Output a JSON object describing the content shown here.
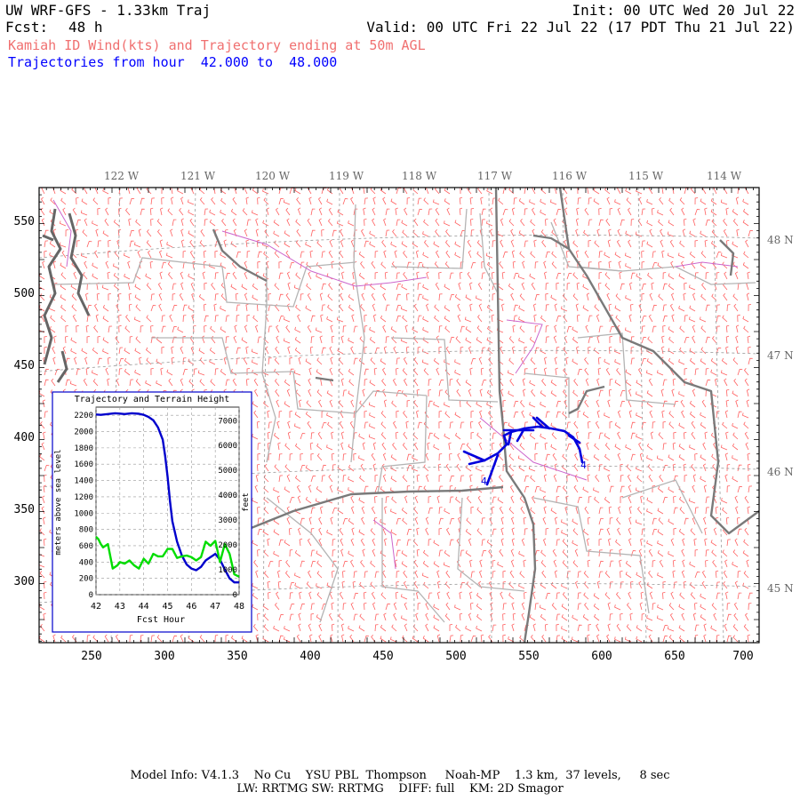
{
  "header": {
    "title": "UW WRF-GFS - 1.33km Traj",
    "init": "Init: 00 UTC Wed 20 Jul 22",
    "fcst_label": "Fcst:",
    "fcst_value": "48 h",
    "valid": "Valid: 00 UTC Fri 22 Jul 22 (17 PDT Thu 21 Jul 22)",
    "subtitle": "Kamiah ID Wind(kts) and Trajectory ending at 50m AGL",
    "traj_line": "Trajectories from hour  42.000 to  48.000"
  },
  "map": {
    "lon_labels": [
      "122 W",
      "121 W",
      "120 W",
      "119 W",
      "118 W",
      "117 W",
      "116 W",
      "115 W",
      "114 W"
    ],
    "lat_labels": [
      "48 N",
      "47 N",
      "46 N",
      "45 N"
    ],
    "x_ticks": [
      "250",
      "300",
      "350",
      "400",
      "450",
      "500",
      "550",
      "600",
      "650",
      "700"
    ],
    "y_ticks": [
      "550",
      "500",
      "450",
      "400",
      "350",
      "300"
    ],
    "trajectory_labels": [
      "4",
      "4"
    ],
    "colors": {
      "wind_barbs": "#ff6060",
      "state_lines": "#7a7a7a",
      "county_lines": "#b4b4b4",
      "rivers": "#cc66cc",
      "trajectory": "#0000dd",
      "coast": "#666666"
    }
  },
  "inset": {
    "title": "Trajectory and Terrain Height",
    "left_axis_label": "meters above sea level",
    "right_axis_label": "feet",
    "x_label": "Fcst Hour"
  },
  "chart_data": {
    "type": "line",
    "title": "Trajectory and Terrain Height",
    "xlabel": "Fcst Hour",
    "ylabel": "meters above sea level",
    "ylabel_right": "feet",
    "xlim": [
      42,
      48
    ],
    "ylim": [
      0,
      2300
    ],
    "x_ticks": [
      42,
      43,
      44,
      45,
      46,
      47,
      48
    ],
    "y_ticks": [
      0,
      200,
      400,
      600,
      800,
      1000,
      1200,
      1400,
      1600,
      1800,
      2000,
      2200
    ],
    "y2_ticks": [
      0,
      1000,
      2000,
      3000,
      4000,
      5000,
      6000,
      7000
    ],
    "grid": true,
    "series": [
      {
        "color": "#0000cc",
        "x": [
          42,
          42.2,
          42.5,
          42.8,
          43.0,
          43.2,
          43.5,
          43.8,
          44.0,
          44.2,
          44.4,
          44.6,
          44.8,
          44.9,
          45.0,
          45.1,
          45.2,
          45.4,
          45.6,
          45.8,
          46.0,
          46.2,
          46.4,
          46.6,
          46.8,
          46.9,
          47.0,
          47.2,
          47.4,
          47.6,
          47.8,
          48.0
        ],
        "y": [
          2210,
          2205,
          2215,
          2225,
          2220,
          2215,
          2225,
          2218,
          2205,
          2180,
          2140,
          2050,
          1900,
          1700,
          1450,
          1150,
          900,
          650,
          480,
          370,
          320,
          300,
          340,
          420,
          460,
          480,
          500,
          430,
          310,
          200,
          150,
          150
        ]
      },
      {
        "color": "#00dd00",
        "x": [
          42,
          42.1,
          42.2,
          42.3,
          42.5,
          42.7,
          42.9,
          43.0,
          43.2,
          43.4,
          43.6,
          43.8,
          44.0,
          44.2,
          44.4,
          44.6,
          44.8,
          45.0,
          45.2,
          45.4,
          45.6,
          45.8,
          46.0,
          46.2,
          46.4,
          46.6,
          46.8,
          47.0,
          47.2,
          47.4,
          47.6,
          47.8,
          48.0
        ],
        "y": [
          710,
          680,
          620,
          580,
          620,
          320,
          360,
          400,
          380,
          420,
          360,
          320,
          440,
          380,
          500,
          470,
          470,
          560,
          560,
          450,
          470,
          480,
          460,
          420,
          460,
          650,
          600,
          660,
          400,
          620,
          500,
          250,
          220
        ]
      }
    ]
  },
  "footer": {
    "line1": "Model Info: V4.1.3    No Cu    YSU PBL  Thompson     Noah-MP    1.3 km,  37 levels,     8 sec",
    "line2": "LW: RRTMG SW: RRTMG    DIFF: full    KM: 2D Smagor"
  }
}
